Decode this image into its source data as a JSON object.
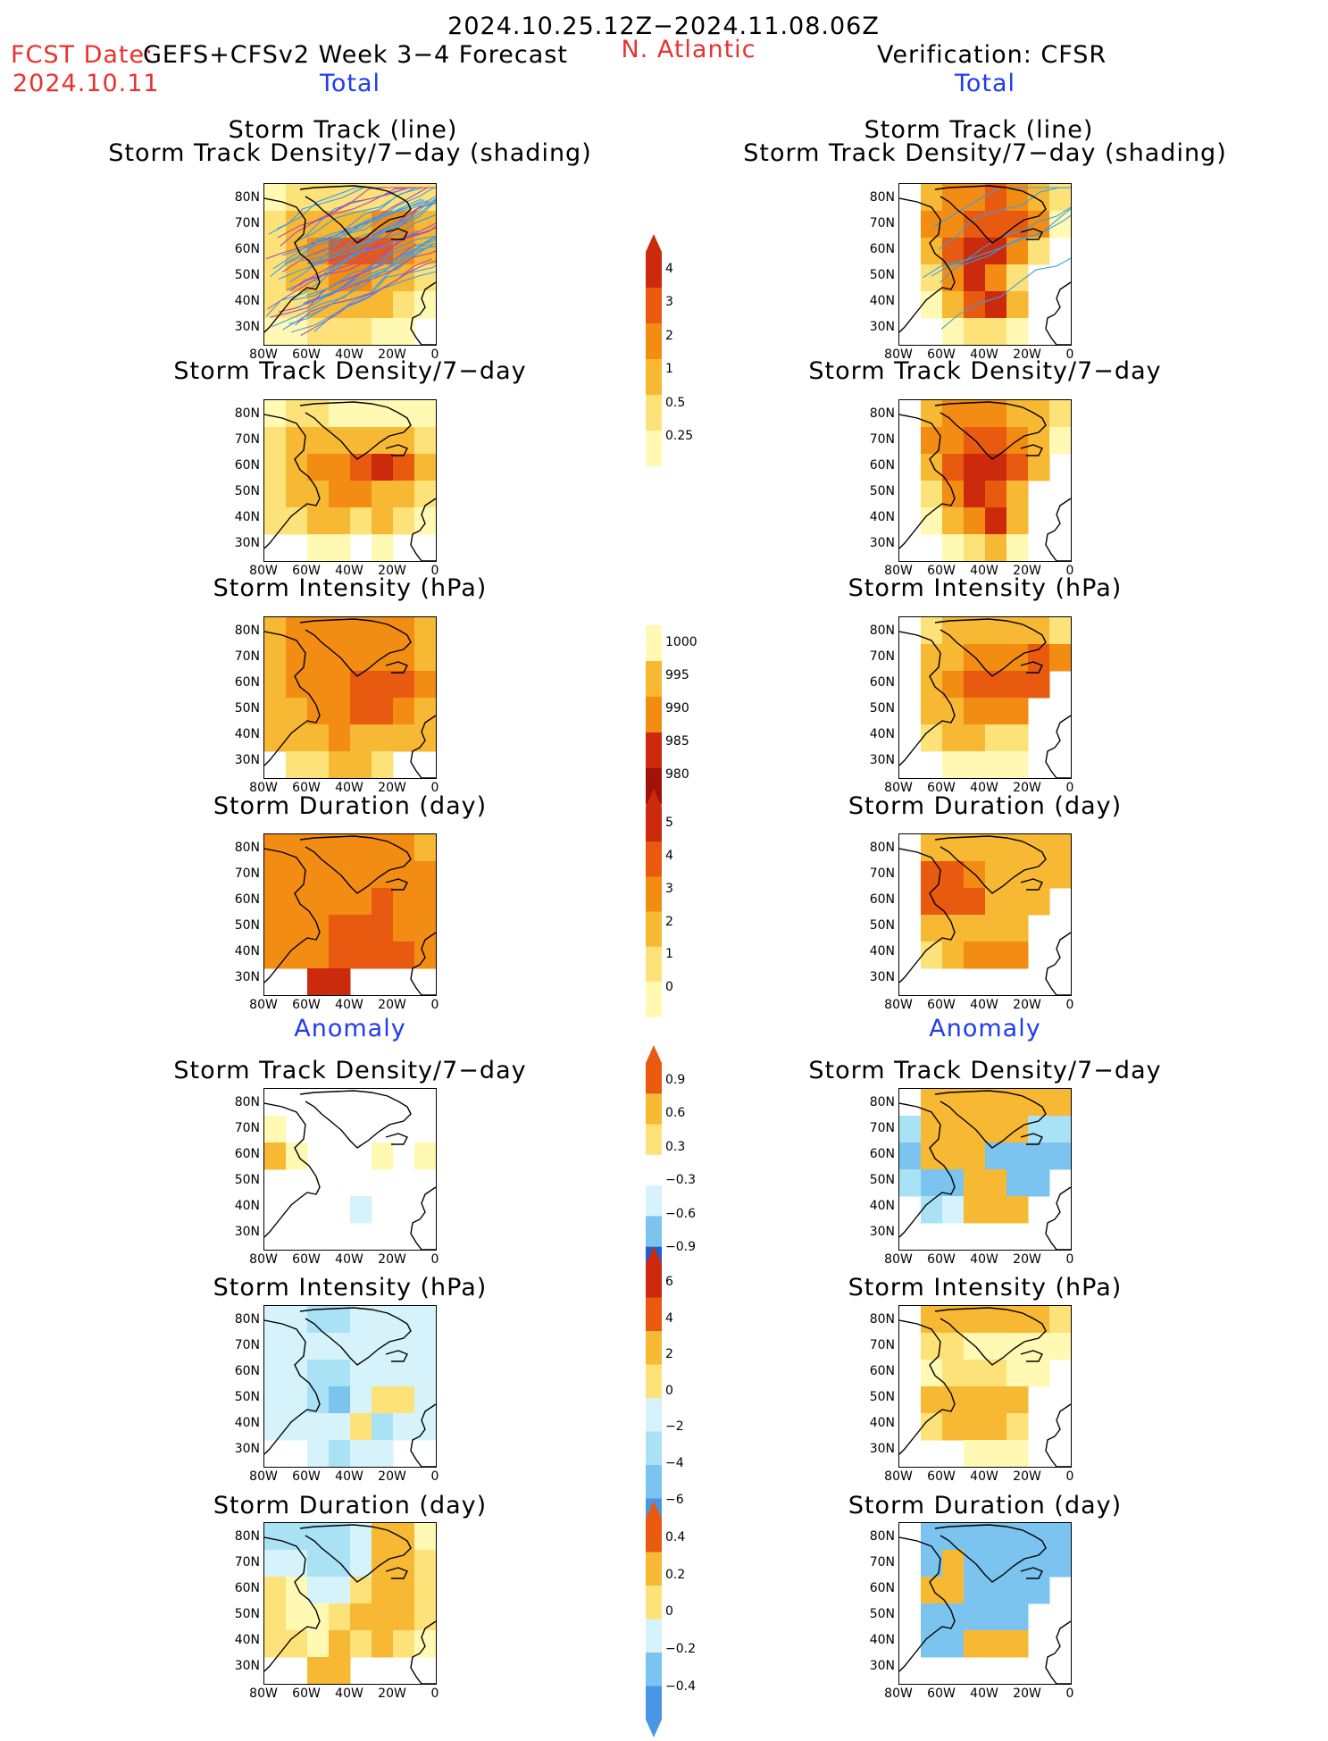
{
  "header": {
    "period": "2024.10.25.12Z−2024.11.08.06Z",
    "fcst_label": "FCST Date:",
    "fcst_date": "2024.10.11",
    "model_title": "GEFS+CFSv2 Week 3−4 Forecast",
    "region": "N. Atlantic",
    "verification": "Verification: CFSR",
    "total_left": "Total",
    "total_right": "Total",
    "anomaly_left": "Anomaly",
    "anomaly_right": "Anomaly"
  },
  "panel_titles": {
    "track_line": "Storm Track (line)",
    "track_shading": "Storm Track Density/7−day (shading)",
    "density": "Storm Track Density/7−day",
    "intensity": "Storm Intensity (hPa)",
    "duration": "Storm Duration (day)"
  },
  "axes": {
    "lat_ticks": [
      "80N",
      "70N",
      "60N",
      "50N",
      "40N",
      "30N"
    ],
    "lon_ticks": [
      "80W",
      "60W",
      "40W",
      "20W",
      "0"
    ]
  },
  "colors": {
    "warm": [
      "#fff9b3",
      "#fde27a",
      "#f7b833",
      "#f28c12",
      "#e85a10",
      "#cc2a0c",
      "#a01208"
    ],
    "cool": [
      "#d6f3fb",
      "#a9e2f5",
      "#7bc4ef",
      "#4a96e6",
      "#1f5fd4"
    ],
    "track_blue": "#3a9ee6",
    "track_purple": "#b04ab0",
    "coast": "#000000"
  },
  "colorbars": [
    {
      "name": "density-total",
      "labels": [
        "4",
        "3",
        "2",
        "1",
        "0.5",
        "0.25"
      ]
    },
    {
      "name": "intensity-total",
      "labels": [
        "1000",
        "995",
        "990",
        "985",
        "980"
      ]
    },
    {
      "name": "duration-total",
      "labels": [
        "5",
        "4",
        "3",
        "2",
        "1",
        "0"
      ]
    },
    {
      "name": "density-anom",
      "labels": [
        "0.9",
        "0.6",
        "0.3",
        "−0.3",
        "−0.6",
        "−0.9"
      ]
    },
    {
      "name": "intensity-anom",
      "labels": [
        "6",
        "4",
        "2",
        "0",
        "−2",
        "−4",
        "−6"
      ]
    },
    {
      "name": "duration-anom",
      "labels": [
        "0.4",
        "0.2",
        "0",
        "−0.2",
        "−0.4"
      ]
    }
  ],
  "chart_data": [
    {
      "type": "heatmap",
      "panel": "forecast-track",
      "title": "Storm Track (line) / Storm Track Density/7−day (shading)",
      "levels": [
        0.25,
        0.5,
        1,
        2,
        3,
        4
      ],
      "xlim": [
        -80,
        0
      ],
      "ylim": [
        25,
        85
      ],
      "grid": [
        [
          1,
          2,
          2,
          2,
          2,
          2,
          2,
          2
        ],
        [
          2,
          3,
          3,
          3,
          3,
          4,
          4,
          3
        ],
        [
          2,
          3,
          4,
          5,
          5,
          5,
          4,
          3
        ],
        [
          2,
          3,
          3,
          4,
          4,
          3,
          3,
          2
        ],
        [
          2,
          2,
          3,
          3,
          3,
          3,
          2,
          1
        ],
        [
          1,
          1,
          2,
          2,
          2,
          1,
          1,
          0
        ]
      ]
    },
    {
      "type": "heatmap",
      "panel": "verification-track",
      "title": "Storm Track (line) / Storm Track Density/7−day (shading)",
      "levels": [
        0.25,
        0.5,
        1,
        2,
        3,
        4
      ],
      "xlim": [
        -80,
        0
      ],
      "ylim": [
        25,
        85
      ],
      "grid": [
        [
          0,
          3,
          4,
          4,
          5,
          4,
          3,
          2
        ],
        [
          0,
          4,
          4,
          5,
          5,
          5,
          4,
          1
        ],
        [
          0,
          3,
          5,
          6,
          6,
          4,
          2,
          0
        ],
        [
          0,
          2,
          4,
          6,
          4,
          2,
          0,
          0
        ],
        [
          0,
          1,
          3,
          5,
          6,
          3,
          0,
          0
        ],
        [
          0,
          0,
          1,
          2,
          2,
          1,
          0,
          0
        ]
      ]
    },
    {
      "type": "heatmap",
      "panel": "forecast-density",
      "title": "Storm Track Density/7−day",
      "levels": [
        0.25,
        0.5,
        1,
        2,
        3,
        4
      ],
      "xlim": [
        -80,
        0
      ],
      "ylim": [
        25,
        85
      ],
      "grid": [
        [
          1,
          2,
          2,
          1,
          1,
          1,
          1,
          1
        ],
        [
          2,
          3,
          3,
          3,
          3,
          3,
          3,
          2
        ],
        [
          2,
          3,
          4,
          4,
          5,
          6,
          5,
          3
        ],
        [
          2,
          3,
          3,
          4,
          4,
          3,
          3,
          2
        ],
        [
          2,
          2,
          3,
          3,
          2,
          3,
          2,
          1
        ],
        [
          0,
          0,
          1,
          1,
          0,
          1,
          0,
          0
        ]
      ]
    },
    {
      "type": "heatmap",
      "panel": "verification-density",
      "title": "Storm Track Density/7−day",
      "levels": [
        0.25,
        0.5,
        1,
        2,
        3,
        4
      ],
      "xlim": [
        -80,
        0
      ],
      "ylim": [
        25,
        85
      ],
      "grid": [
        [
          0,
          3,
          4,
          4,
          4,
          3,
          3,
          2
        ],
        [
          0,
          4,
          4,
          5,
          5,
          4,
          3,
          1
        ],
        [
          0,
          3,
          5,
          6,
          6,
          5,
          3,
          0
        ],
        [
          0,
          2,
          4,
          6,
          5,
          3,
          0,
          0
        ],
        [
          0,
          1,
          3,
          4,
          6,
          3,
          0,
          0
        ],
        [
          0,
          0,
          1,
          2,
          3,
          1,
          0,
          0
        ]
      ]
    },
    {
      "type": "heatmap",
      "panel": "forecast-intensity",
      "title": "Storm Intensity (hPa)",
      "levels": [
        1000,
        995,
        990,
        985,
        980
      ],
      "xlim": [
        -80,
        0
      ],
      "ylim": [
        25,
        85
      ],
      "grid": [
        [
          3,
          4,
          4,
          4,
          4,
          4,
          4,
          3
        ],
        [
          3,
          4,
          4,
          4,
          4,
          4,
          4,
          3
        ],
        [
          3,
          4,
          4,
          4,
          5,
          5,
          5,
          4
        ],
        [
          3,
          3,
          4,
          4,
          5,
          5,
          4,
          3
        ],
        [
          3,
          3,
          3,
          4,
          3,
          3,
          3,
          3
        ],
        [
          0,
          2,
          2,
          3,
          3,
          2,
          0,
          0
        ]
      ]
    },
    {
      "type": "heatmap",
      "panel": "verification-intensity",
      "title": "Storm Intensity (hPa)",
      "levels": [
        1000,
        995,
        990,
        985,
        980
      ],
      "xlim": [
        -80,
        0
      ],
      "ylim": [
        25,
        85
      ],
      "grid": [
        [
          0,
          2,
          3,
          3,
          3,
          3,
          3,
          2
        ],
        [
          0,
          3,
          3,
          4,
          4,
          4,
          5,
          4
        ],
        [
          0,
          3,
          4,
          5,
          5,
          5,
          5,
          0
        ],
        [
          0,
          3,
          3,
          4,
          4,
          4,
          0,
          0
        ],
        [
          0,
          2,
          3,
          3,
          2,
          2,
          0,
          0
        ],
        [
          0,
          0,
          1,
          1,
          1,
          1,
          0,
          0
        ]
      ]
    },
    {
      "type": "heatmap",
      "panel": "forecast-duration",
      "title": "Storm Duration (day)",
      "levels": [
        0,
        1,
        2,
        3,
        4,
        5
      ],
      "xlim": [
        -80,
        0
      ],
      "ylim": [
        25,
        85
      ],
      "grid": [
        [
          4,
          4,
          4,
          4,
          4,
          4,
          4,
          3
        ],
        [
          4,
          4,
          4,
          4,
          4,
          4,
          4,
          4
        ],
        [
          4,
          4,
          4,
          4,
          4,
          5,
          4,
          4
        ],
        [
          4,
          4,
          4,
          5,
          5,
          5,
          4,
          4
        ],
        [
          4,
          4,
          4,
          5,
          5,
          5,
          5,
          4
        ],
        [
          0,
          0,
          6,
          6,
          0,
          0,
          0,
          0
        ]
      ]
    },
    {
      "type": "heatmap",
      "panel": "verification-duration",
      "title": "Storm Duration (day)",
      "levels": [
        0,
        1,
        2,
        3,
        4,
        5
      ],
      "xlim": [
        -80,
        0
      ],
      "ylim": [
        25,
        85
      ],
      "grid": [
        [
          0,
          3,
          3,
          3,
          3,
          3,
          3,
          3
        ],
        [
          0,
          5,
          5,
          4,
          3,
          3,
          3,
          3
        ],
        [
          0,
          5,
          5,
          5,
          3,
          3,
          3,
          0
        ],
        [
          0,
          3,
          3,
          3,
          3,
          3,
          0,
          0
        ],
        [
          0,
          2,
          3,
          4,
          4,
          4,
          0,
          0
        ],
        [
          0,
          0,
          0,
          0,
          0,
          0,
          0,
          0
        ]
      ]
    },
    {
      "type": "heatmap",
      "panel": "forecast-density-anomaly",
      "title": "Storm Track Density/7−day",
      "levels": [
        -0.9,
        -0.6,
        -0.3,
        0.3,
        0.6,
        0.9
      ],
      "xlim": [
        -80,
        0
      ],
      "ylim": [
        25,
        85
      ],
      "grid": [
        [
          0,
          0,
          0,
          0,
          0,
          0,
          0,
          0
        ],
        [
          1,
          0,
          0,
          0,
          0,
          0,
          0,
          0
        ],
        [
          3,
          1,
          0,
          0,
          0,
          1,
          0,
          1
        ],
        [
          0,
          0,
          0,
          0,
          0,
          0,
          0,
          0
        ],
        [
          0,
          0,
          0,
          0,
          -1,
          0,
          0,
          0
        ],
        [
          0,
          0,
          0,
          0,
          0,
          0,
          0,
          0
        ]
      ]
    },
    {
      "type": "heatmap",
      "panel": "verification-density-anomaly",
      "title": "Storm Track Density/7−day",
      "levels": [
        -0.9,
        -0.6,
        -0.3,
        0.3,
        0.6,
        0.9
      ],
      "xlim": [
        -80,
        0
      ],
      "ylim": [
        25,
        85
      ],
      "grid": [
        [
          0,
          3,
          3,
          3,
          3,
          3,
          3,
          3
        ],
        [
          -2,
          3,
          3,
          3,
          3,
          3,
          -2,
          -2
        ],
        [
          -3,
          3,
          3,
          3,
          -3,
          -3,
          -3,
          -3
        ],
        [
          -2,
          -3,
          -3,
          3,
          3,
          -3,
          -3,
          0
        ],
        [
          0,
          -2,
          -1,
          3,
          3,
          3,
          0,
          0
        ],
        [
          0,
          0,
          0,
          0,
          0,
          0,
          0,
          0
        ]
      ]
    },
    {
      "type": "heatmap",
      "panel": "forecast-intensity-anomaly",
      "title": "Storm Intensity (hPa)",
      "levels": [
        -6,
        -4,
        -2,
        0,
        2,
        4,
        6
      ],
      "xlim": [
        -80,
        0
      ],
      "ylim": [
        25,
        85
      ],
      "grid": [
        [
          -1,
          -1,
          -2,
          -2,
          -1,
          -1,
          -1,
          -1
        ],
        [
          -1,
          -1,
          -1,
          -1,
          -1,
          -1,
          -1,
          -1
        ],
        [
          -1,
          -1,
          -2,
          -2,
          -1,
          -1,
          -1,
          -1
        ],
        [
          -1,
          -1,
          -2,
          -3,
          -1,
          2,
          2,
          -1
        ],
        [
          -1,
          -1,
          -1,
          -1,
          2,
          -2,
          -1,
          -1
        ],
        [
          0,
          0,
          -1,
          -2,
          -1,
          -1,
          0,
          0
        ]
      ]
    },
    {
      "type": "heatmap",
      "panel": "verification-intensity-anomaly",
      "title": "Storm Intensity (hPa)",
      "levels": [
        -6,
        -4,
        -2,
        0,
        2,
        4,
        6
      ],
      "xlim": [
        -80,
        0
      ],
      "ylim": [
        25,
        85
      ],
      "grid": [
        [
          0,
          3,
          3,
          3,
          3,
          3,
          3,
          2
        ],
        [
          0,
          2,
          2,
          1,
          1,
          1,
          1,
          1
        ],
        [
          0,
          1,
          2,
          2,
          2,
          1,
          1,
          0
        ],
        [
          0,
          3,
          3,
          3,
          3,
          3,
          0,
          0
        ],
        [
          0,
          2,
          3,
          3,
          3,
          2,
          0,
          0
        ],
        [
          0,
          0,
          0,
          1,
          1,
          1,
          0,
          0
        ]
      ]
    },
    {
      "type": "heatmap",
      "panel": "forecast-duration-anomaly",
      "title": "Storm Duration (day)",
      "levels": [
        -0.4,
        -0.2,
        0,
        0.2,
        0.4
      ],
      "xlim": [
        -80,
        0
      ],
      "ylim": [
        25,
        85
      ],
      "grid": [
        [
          -2,
          -2,
          -2,
          -2,
          -1,
          3,
          3,
          1
        ],
        [
          -1,
          -1,
          -2,
          -2,
          -1,
          3,
          3,
          2
        ],
        [
          2,
          1,
          -1,
          -1,
          2,
          3,
          3,
          2
        ],
        [
          2,
          1,
          1,
          2,
          3,
          3,
          3,
          2
        ],
        [
          2,
          2,
          1,
          3,
          2,
          3,
          2,
          1
        ],
        [
          0,
          0,
          3,
          3,
          0,
          0,
          0,
          0
        ]
      ]
    },
    {
      "type": "heatmap",
      "panel": "verification-duration-anomaly",
      "title": "Storm Duration (day)",
      "levels": [
        -0.4,
        -0.2,
        0,
        0.2,
        0.4
      ],
      "xlim": [
        -80,
        0
      ],
      "ylim": [
        25,
        85
      ],
      "grid": [
        [
          0,
          -3,
          -3,
          -3,
          -3,
          -3,
          -3,
          -3
        ],
        [
          0,
          -3,
          3,
          -3,
          -3,
          -3,
          -3,
          -3
        ],
        [
          0,
          3,
          3,
          -3,
          -3,
          -3,
          -3,
          0
        ],
        [
          0,
          -3,
          -3,
          -3,
          -3,
          -3,
          0,
          0
        ],
        [
          0,
          -3,
          -3,
          3,
          3,
          3,
          0,
          0
        ],
        [
          0,
          0,
          0,
          0,
          0,
          0,
          0,
          0
        ]
      ]
    }
  ]
}
